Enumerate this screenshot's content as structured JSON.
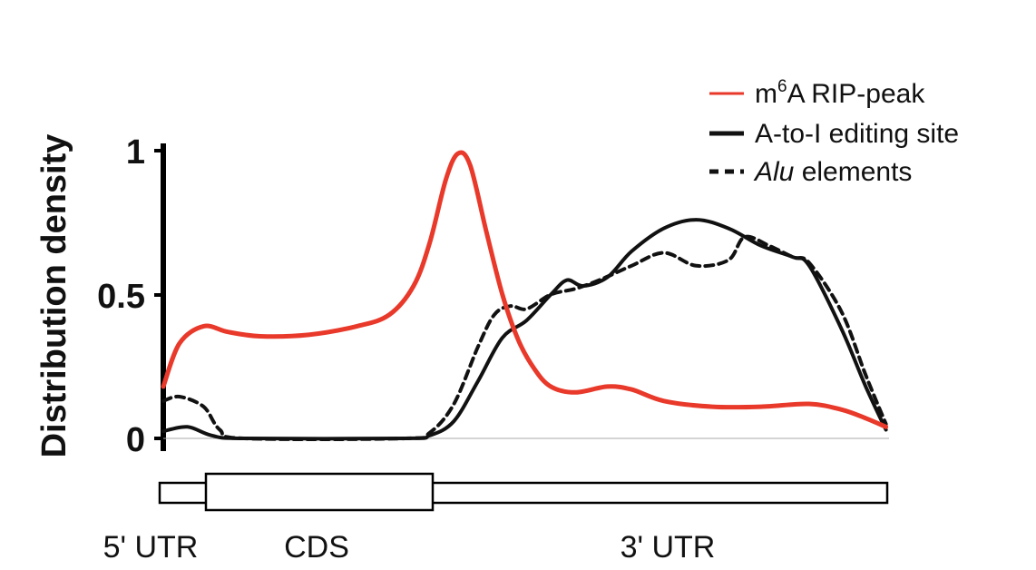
{
  "chart_data": {
    "type": "line",
    "ylabel": "Distribution density",
    "ylim": [
      0,
      1
    ],
    "yticks": [
      {
        "value": 1,
        "label": "1"
      },
      {
        "value": 0.5,
        "label": "0.5"
      },
      {
        "value": 0,
        "label": "0"
      }
    ],
    "series": [
      {
        "name": "m6A RIP-peak",
        "legend_prefix": "m",
        "legend_sup": "6",
        "legend_suffix": "A RIP-peak",
        "color": "#e8392a",
        "style": "solid",
        "points": [
          [
            0.0,
            0.18
          ],
          [
            0.02,
            0.33
          ],
          [
            0.05,
            0.39
          ],
          [
            0.08,
            0.37
          ],
          [
            0.12,
            0.355
          ],
          [
            0.18,
            0.36
          ],
          [
            0.24,
            0.39
          ],
          [
            0.28,
            0.43
          ],
          [
            0.31,
            0.53
          ],
          [
            0.33,
            0.68
          ],
          [
            0.35,
            0.9
          ],
          [
            0.365,
            0.99
          ],
          [
            0.38,
            0.95
          ],
          [
            0.4,
            0.72
          ],
          [
            0.42,
            0.5
          ],
          [
            0.44,
            0.34
          ],
          [
            0.46,
            0.24
          ],
          [
            0.48,
            0.18
          ],
          [
            0.51,
            0.16
          ],
          [
            0.55,
            0.18
          ],
          [
            0.58,
            0.17
          ],
          [
            0.62,
            0.13
          ],
          [
            0.68,
            0.11
          ],
          [
            0.74,
            0.11
          ],
          [
            0.8,
            0.12
          ],
          [
            0.84,
            0.1
          ],
          [
            0.87,
            0.07
          ],
          [
            0.895,
            0.04
          ]
        ]
      },
      {
        "name": "A-to-I editing site",
        "legend_prefix": "A-to-I editing site",
        "legend_sup": "",
        "legend_suffix": "",
        "color": "#111111",
        "style": "solid",
        "points": [
          [
            0.0,
            0.025
          ],
          [
            0.03,
            0.04
          ],
          [
            0.06,
            0.01
          ],
          [
            0.1,
            0.0
          ],
          [
            0.3,
            0.0
          ],
          [
            0.33,
            0.01
          ],
          [
            0.36,
            0.06
          ],
          [
            0.39,
            0.2
          ],
          [
            0.42,
            0.35
          ],
          [
            0.45,
            0.41
          ],
          [
            0.48,
            0.5
          ],
          [
            0.5,
            0.55
          ],
          [
            0.52,
            0.53
          ],
          [
            0.55,
            0.56
          ],
          [
            0.58,
            0.65
          ],
          [
            0.62,
            0.73
          ],
          [
            0.66,
            0.76
          ],
          [
            0.7,
            0.73
          ],
          [
            0.74,
            0.67
          ],
          [
            0.78,
            0.63
          ],
          [
            0.8,
            0.6
          ],
          [
            0.84,
            0.38
          ],
          [
            0.87,
            0.18
          ],
          [
            0.895,
            0.03
          ]
        ]
      },
      {
        "name": "Alu elements",
        "legend_prefix": "",
        "legend_italic": "Alu",
        "legend_suffix": " elements",
        "legend_sup": "",
        "color": "#111111",
        "style": "dashed",
        "points": [
          [
            0.0,
            0.13
          ],
          [
            0.02,
            0.145
          ],
          [
            0.05,
            0.11
          ],
          [
            0.07,
            0.03
          ],
          [
            0.1,
            0.0
          ],
          [
            0.3,
            0.0
          ],
          [
            0.33,
            0.02
          ],
          [
            0.36,
            0.12
          ],
          [
            0.39,
            0.32
          ],
          [
            0.41,
            0.43
          ],
          [
            0.43,
            0.46
          ],
          [
            0.45,
            0.45
          ],
          [
            0.48,
            0.5
          ],
          [
            0.51,
            0.52
          ],
          [
            0.54,
            0.55
          ],
          [
            0.58,
            0.6
          ],
          [
            0.62,
            0.645
          ],
          [
            0.66,
            0.6
          ],
          [
            0.7,
            0.62
          ],
          [
            0.72,
            0.7
          ],
          [
            0.75,
            0.67
          ],
          [
            0.78,
            0.63
          ],
          [
            0.8,
            0.61
          ],
          [
            0.84,
            0.44
          ],
          [
            0.87,
            0.22
          ],
          [
            0.895,
            0.05
          ]
        ]
      }
    ],
    "gene_model": {
      "labels": [
        "5' UTR",
        "CDS",
        "3' UTR"
      ]
    },
    "legend_position": "top-right"
  }
}
